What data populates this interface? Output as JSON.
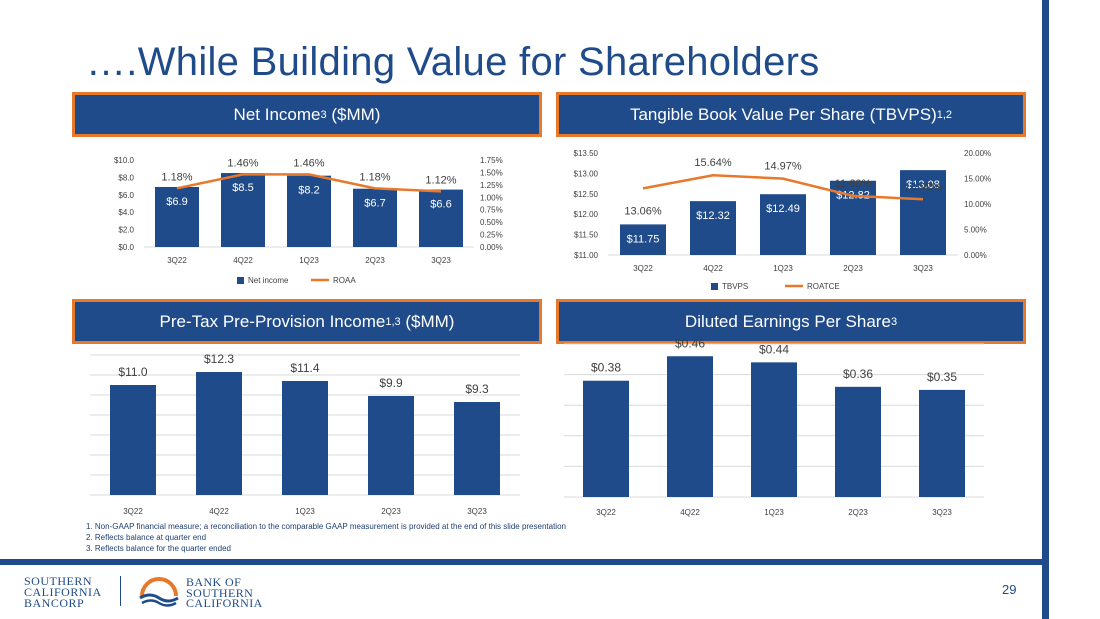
{
  "slide": {
    "title": "….While Building Value for Shareholders",
    "page_number": "29",
    "footnotes": [
      "1.   Non-GAAP financial measure; a reconciliation to the comparable GAAP measurement is provided at the end of this slide presentation",
      "2.   Reflects balance at quarter end",
      "3.   Reflects balance for the quarter ended"
    ],
    "logo_left": [
      "SOUTHERN",
      "CALIFORNIA",
      "BANCORP"
    ],
    "logo_right": [
      "BANK OF",
      "SOUTHERN",
      "CALIFORNIA"
    ]
  },
  "colors": {
    "navy": "#1f4b8a",
    "orange": "#e8792b",
    "grid": "#d9d9d9"
  },
  "panels": {
    "net_income": {
      "title": "Net Income",
      "sup": "3",
      "suffix": " ($MM)"
    },
    "tbvps": {
      "title": "Tangible Book Value Per Share (TBVPS)",
      "sup": "1,2",
      "suffix": ""
    },
    "pretax": {
      "title": "Pre-Tax Pre-Provision Income",
      "sup": "1,3",
      "suffix": " ($MM)"
    },
    "eps": {
      "title": "Diluted Earnings Per Share",
      "sup": "3",
      "suffix": ""
    }
  },
  "chart_data": [
    {
      "id": "net_income",
      "type": "bar",
      "categories": [
        "3Q22",
        "4Q22",
        "1Q23",
        "2Q23",
        "3Q23"
      ],
      "series": [
        {
          "name": "Net income",
          "values": [
            6.9,
            8.5,
            8.2,
            6.7,
            6.6
          ],
          "labels": [
            "$6.9",
            "$8.5",
            "$8.2",
            "$6.7",
            "$6.6"
          ]
        },
        {
          "name": "ROAA",
          "kind": "line",
          "axis": "right",
          "values": [
            1.18,
            1.46,
            1.46,
            1.18,
            1.12
          ],
          "labels": [
            "1.18%",
            "1.46%",
            "1.46%",
            "1.18%",
            "1.12%"
          ]
        }
      ],
      "ylim": [
        0,
        10
      ],
      "yticks": [
        "$0.0",
        "$2.0",
        "$4.0",
        "$6.0",
        "$8.0",
        "$10.0"
      ],
      "y2lim": [
        0,
        1.75
      ],
      "y2ticks": [
        "0.00%",
        "0.25%",
        "0.50%",
        "0.75%",
        "1.00%",
        "1.25%",
        "1.50%",
        "1.75%"
      ],
      "legend": [
        "Net income",
        "ROAA"
      ]
    },
    {
      "id": "tbvps",
      "type": "bar",
      "categories": [
        "3Q22",
        "4Q22",
        "1Q23",
        "2Q23",
        "3Q23"
      ],
      "series": [
        {
          "name": "TBVPS",
          "values": [
            11.75,
            12.32,
            12.49,
            12.82,
            13.08
          ],
          "labels": [
            "$11.75",
            "$12.32",
            "$12.49",
            "$12.82",
            "$13.08"
          ]
        },
        {
          "name": "ROATCE",
          "kind": "line",
          "axis": "right",
          "values": [
            13.06,
            15.64,
            14.97,
            11.6,
            10.92
          ],
          "labels": [
            "13.06%",
            "15.64%",
            "14.97%",
            "11.60%",
            "10.92%"
          ]
        }
      ],
      "ylim": [
        11,
        13.5
      ],
      "yticks": [
        "$11.00",
        "$11.50",
        "$12.00",
        "$12.50",
        "$13.00",
        "$13.50"
      ],
      "y2lim": [
        0,
        20
      ],
      "y2ticks": [
        "0.00%",
        "5.00%",
        "10.00%",
        "15.00%",
        "20.00%"
      ],
      "legend": [
        "TBVPS",
        "ROATCE"
      ]
    },
    {
      "id": "pretax",
      "type": "bar",
      "categories": [
        "3Q22",
        "4Q22",
        "1Q23",
        "2Q23",
        "3Q23"
      ],
      "series": [
        {
          "name": "Pre-Tax Pre-Provision Income",
          "values": [
            11.0,
            12.3,
            11.4,
            9.9,
            9.3
          ],
          "labels": [
            "$11.0",
            "$12.3",
            "$11.4",
            "$9.9",
            "$9.3"
          ]
        }
      ],
      "ylim": [
        0,
        14
      ]
    },
    {
      "id": "eps",
      "type": "bar",
      "categories": [
        "3Q22",
        "4Q22",
        "1Q23",
        "2Q23",
        "3Q23"
      ],
      "series": [
        {
          "name": "Diluted EPS",
          "values": [
            0.38,
            0.46,
            0.44,
            0.36,
            0.35
          ],
          "labels": [
            "$0.38",
            "$0.46",
            "$0.44",
            "$0.36",
            "$0.35"
          ]
        }
      ],
      "ylim": [
        0,
        0.5
      ]
    }
  ]
}
